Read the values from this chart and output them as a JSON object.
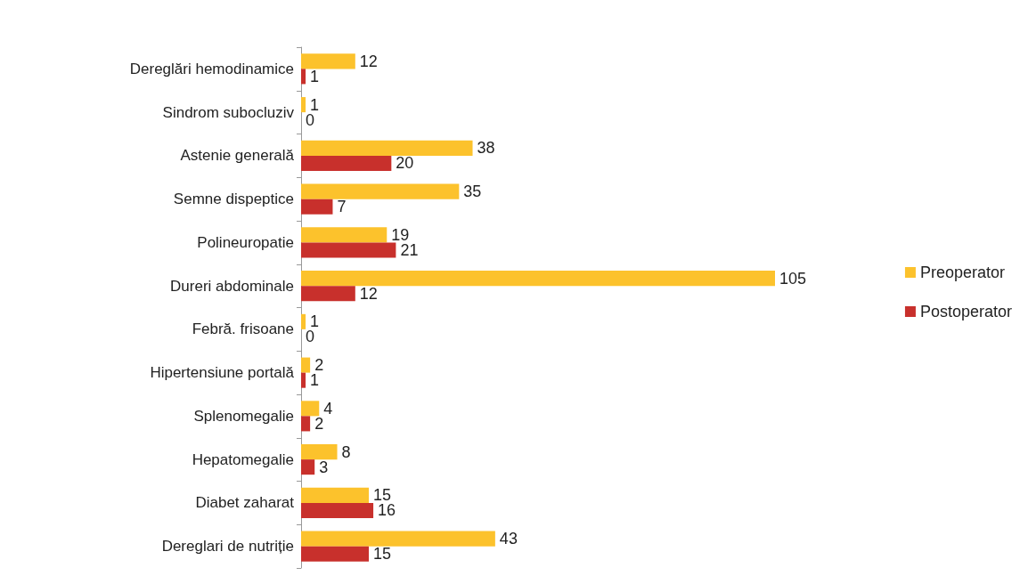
{
  "chart_data": {
    "type": "bar",
    "orientation": "horizontal",
    "categories": [
      "Dereglări hemodinamice",
      "Sindrom subocluziv",
      "Astenie generală",
      "Semne dispeptice",
      "Polineuropatie",
      "Dureri abdominale",
      "Febră. frisoane",
      "Hipertensiune portală",
      "Splenomegalie",
      "Hepatomegalie",
      "Diabet zaharat",
      "Dereglari de nutriție"
    ],
    "series": [
      {
        "name": "Preoperator",
        "color": "#fcc22c",
        "values": [
          12,
          1,
          38,
          35,
          19,
          105,
          1,
          2,
          4,
          8,
          15,
          43
        ]
      },
      {
        "name": "Postoperator",
        "color": "#c8302c",
        "values": [
          1,
          0,
          20,
          7,
          21,
          12,
          0,
          1,
          2,
          3,
          16,
          15
        ]
      }
    ],
    "data_labels": true,
    "legend": "right",
    "grid": false
  }
}
